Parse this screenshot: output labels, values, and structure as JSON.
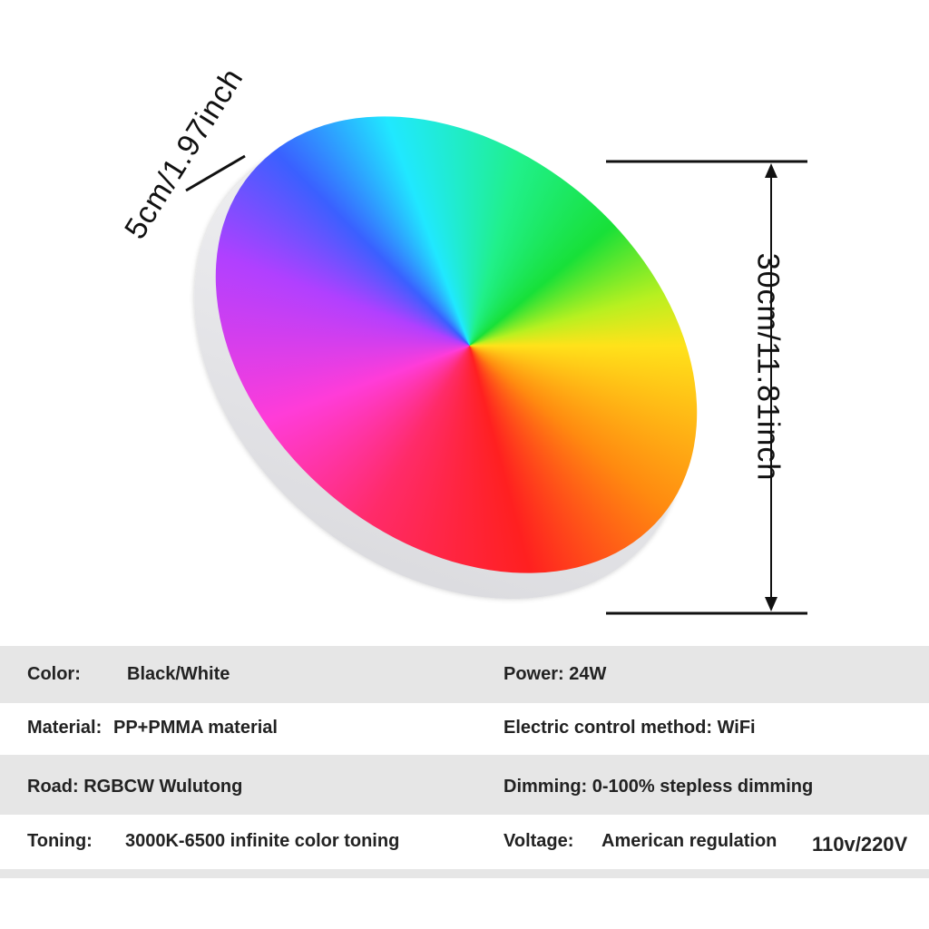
{
  "dimensions": {
    "height": "5cm/1.97inch",
    "diameter": "30cm/11.81inch"
  },
  "table": {
    "rows": [
      {
        "left": [
          "Color:",
          "Black/White"
        ],
        "right": [
          "Power: 24W"
        ]
      },
      {
        "left": [
          "Material:",
          "PP+PMMA material"
        ],
        "right": [
          "Electric control method: WiFi"
        ]
      },
      {
        "left": [
          "Road: RGBCW Wulutong"
        ],
        "right": [
          "Dimming: 0-100% stepless dimming"
        ]
      },
      {
        "left": [
          "Toning:",
          "3000K-6500 infinite color toning"
        ],
        "right": [
          "Voltage:",
          "American regulation",
          "110v/220V"
        ]
      }
    ]
  }
}
